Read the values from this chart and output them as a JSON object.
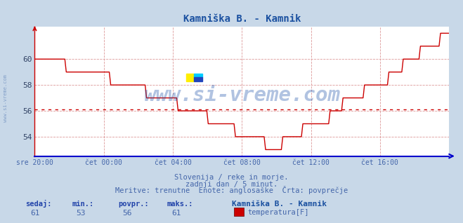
{
  "title": "Kamniška B. - Kamnik",
  "title_color": "#1a50a0",
  "bg_color": "#c8d8e8",
  "plot_bg_color": "#ffffff",
  "line_color": "#cc0000",
  "avg_line_color": "#cc0000",
  "avg_value": 56.1,
  "x_labels": [
    "sre 20:00",
    "čet 00:00",
    "čet 04:00",
    "čet 08:00",
    "čet 12:00",
    "čet 16:00"
  ],
  "x_ticks_norm": [
    0.0,
    0.1667,
    0.3333,
    0.5,
    0.6667,
    0.8333
  ],
  "y_ticks": [
    54,
    56,
    58,
    60
  ],
  "ylim": [
    52.5,
    62.5
  ],
  "xlim": [
    0,
    1
  ],
  "grid_color": "#dd9999",
  "watermark": "www.si-vreme.com",
  "watermark_color": "#2255aa",
  "watermark_alpha": 0.35,
  "left_text": "www.si-vreme.com",
  "subtitle1": "Slovenija / reke in morje.",
  "subtitle2": "zadnji dan / 5 minut.",
  "subtitle3": "Meritve: trenutne  Enote: anglosaške  Črta: povprečje",
  "subtitle_color": "#4466aa",
  "footer_labels": [
    "sedaj:",
    "min.:",
    "povpr.:",
    "maks.:"
  ],
  "footer_values": [
    "61",
    "53",
    "56",
    "61"
  ],
  "footer_color": "#2244aa",
  "footer_bold_label": "Kamniška B. - Kamnik",
  "footer_series_label": "temperatura[F]",
  "legend_color": "#cc0000",
  "x_axis_color": "#0000cc",
  "y_axis_color": "#cc0000"
}
